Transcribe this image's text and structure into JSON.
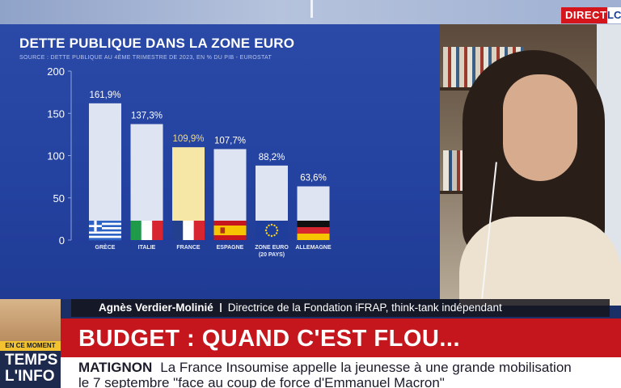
{
  "channel": {
    "live_label": "DIRECT",
    "logo_text": "LC"
  },
  "chart_data": {
    "type": "bar",
    "title": "DETTE PUBLIQUE DANS LA ZONE EURO",
    "source": "SOURCE : DETTE PUBLIQUE AU 4ÈME TRIMESTRE DE 2023, EN % DU PIB - EUROSTAT",
    "categories": [
      "GRÈCE",
      "ITALIE",
      "FRANCE",
      "ESPAGNE",
      "ZONE EURO\n(20 PAYS)",
      "ALLEMAGNE"
    ],
    "values": [
      161.9,
      137.3,
      109.9,
      107.7,
      88.2,
      63.6
    ],
    "value_labels": [
      "161,9%",
      "137,3%",
      "109,9%",
      "107,7%",
      "88,2%",
      "63,6%"
    ],
    "highlight_index": 2,
    "flags": [
      "greece-flag",
      "italy-flag",
      "france-flag",
      "spain-flag",
      "eu-flag",
      "germany-flag"
    ],
    "yticks": [
      0,
      50,
      100,
      150,
      200
    ],
    "ylim": [
      0,
      200
    ],
    "grid": false,
    "colors": {
      "bar": "#dfe4f2",
      "highlight_bar": "#f6e7a6",
      "highlight_label": "#f4d977",
      "background": "#2747a3"
    }
  },
  "lower_third": {
    "guest_name": "Agnès Verdier-Molinié",
    "guest_role": "Directrice de la Fondation iFRAP, think-tank indépendant",
    "headline": "BUDGET : QUAND C'EST FLOU...",
    "ticker_keyword": "MATIGNON",
    "ticker_text": "La France Insoumise appelle la jeunesse à une grande mobilisation",
    "ticker_text_2": "le 7 septembre \"face au coup de force d'Emmanuel Macron\""
  },
  "promo": {
    "tag": "EN CE MOMENT",
    "show_line1": "TEMPS",
    "show_line2": "L'INFO"
  }
}
